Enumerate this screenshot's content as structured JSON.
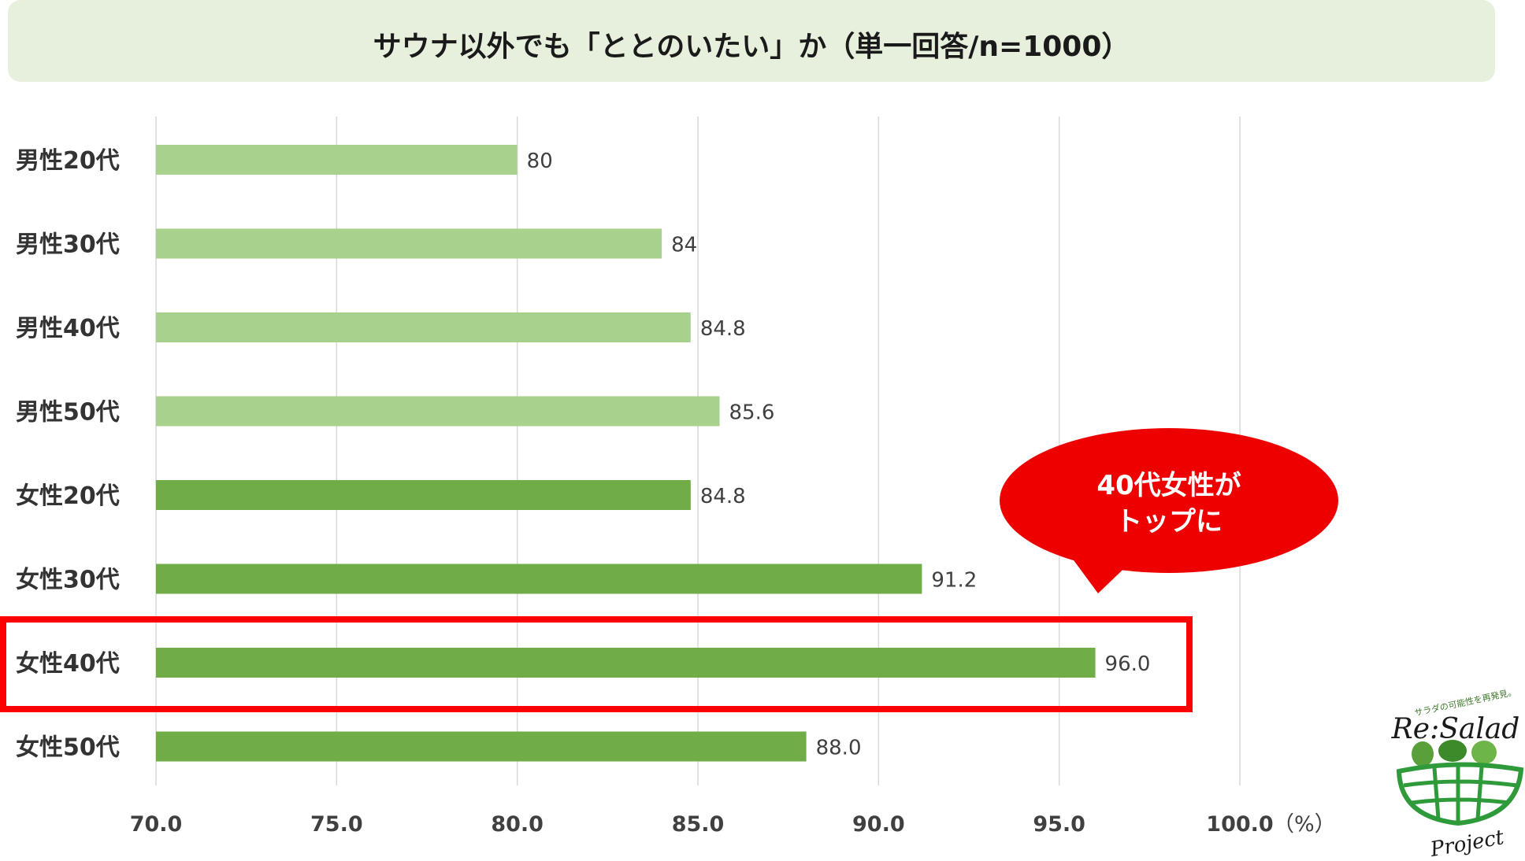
{
  "chart_data": {
    "type": "bar",
    "orientation": "horizontal",
    "title": "サウナ以外でも「ととのいたい」か（単一回答/n=1000）",
    "unit": "（%）",
    "categories": [
      "男性20代",
      "男性30代",
      "男性40代",
      "男性50代",
      "女性20代",
      "女性30代",
      "女性40代",
      "女性50代"
    ],
    "values": [
      80,
      84,
      84.8,
      85.6,
      84.8,
      91.2,
      96.0,
      88.0
    ],
    "value_labels": [
      "80",
      "84",
      "84.8",
      "85.6",
      "84.8",
      "91.2",
      "96.0",
      "88.0"
    ],
    "xlim": [
      70,
      100
    ],
    "ticks": [
      "70.0",
      "75.0",
      "80.0",
      "85.0",
      "90.0",
      "95.0",
      "100.0"
    ],
    "grid": "vertical",
    "colors": {
      "male": "#a9d18e",
      "female": "#70ad47",
      "highlight": "#ff0000",
      "callout": "#ee0000",
      "title_bg": "#e6f0dc"
    },
    "highlight_category": "女性40代",
    "callout_lines": [
      "40代女性が",
      "トップに"
    ]
  },
  "logo": {
    "tagline": "サラダの可能性を再発見。",
    "name": "Re:Salad",
    "sub": "Project"
  }
}
